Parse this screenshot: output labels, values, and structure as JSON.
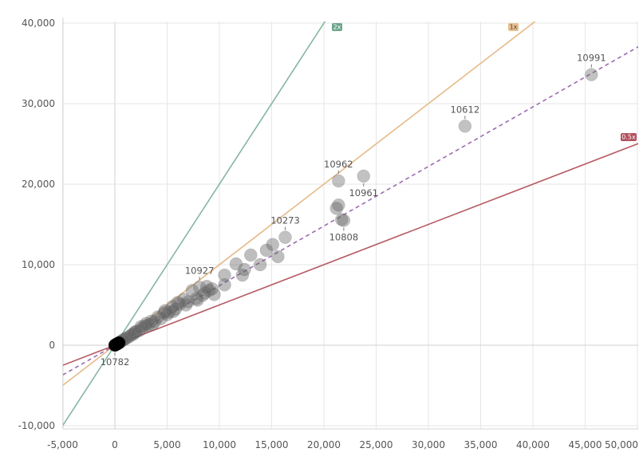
{
  "chart_data": {
    "type": "scatter",
    "title": "",
    "xlabel": "",
    "ylabel": "",
    "xlim": [
      -5000,
      50500
    ],
    "ylim": [
      -10000,
      40500
    ],
    "grid": true,
    "x_ticks": [
      {
        "value": -5000,
        "label": "-5,000"
      },
      {
        "value": 0,
        "label": "0"
      },
      {
        "value": 5000,
        "label": "5,000"
      },
      {
        "value": 10000,
        "label": "10,000"
      },
      {
        "value": 15000,
        "label": "15,000"
      },
      {
        "value": 20000,
        "label": "20,000"
      },
      {
        "value": 25000,
        "label": "25,000"
      },
      {
        "value": 30000,
        "label": "30,000"
      },
      {
        "value": 35000,
        "label": "35,000"
      },
      {
        "value": 40000,
        "label": "40,000"
      },
      {
        "value": 45000,
        "label": "45,000"
      },
      {
        "value": 50000,
        "label": "50,000"
      }
    ],
    "y_ticks": [
      {
        "value": -10000,
        "label": "-10,000"
      },
      {
        "value": 0,
        "label": "0"
      },
      {
        "value": 10000,
        "label": "10,000"
      },
      {
        "value": 20000,
        "label": "20,000"
      },
      {
        "value": 30000,
        "label": "30,000"
      },
      {
        "value": 40000,
        "label": "40,000"
      }
    ],
    "reference_lines": [
      {
        "label": "2x",
        "slope": 2,
        "color": "#86b6a0",
        "badge_color": "#6da58c"
      },
      {
        "label": "1x",
        "slope": 1,
        "color": "#e6b98a",
        "badge_color": "#e8bf90"
      },
      {
        "label": "0.5x",
        "slope": 0.5,
        "color": "#b65a62",
        "badge_color": "#b34f5c"
      }
    ],
    "trend_line": {
      "slope": 0.74,
      "intercept": 0,
      "color": "#9b6bb0",
      "dashed": true
    },
    "labeled_points": [
      {
        "id": "10991",
        "x": 45600,
        "y": 33600
      },
      {
        "id": "10612",
        "x": 33500,
        "y": 27200
      },
      {
        "id": "10962",
        "x": 21400,
        "y": 20400
      },
      {
        "id": "10961",
        "x": 23800,
        "y": 21000
      },
      {
        "id": "10273",
        "x": 16300,
        "y": 13400
      },
      {
        "id": "10808",
        "x": 21900,
        "y": 15500
      },
      {
        "id": "10927",
        "x": 8100,
        "y": 7200
      },
      {
        "id": "10782",
        "x": 0,
        "y": 0
      }
    ],
    "points": [
      [
        21200,
        17000
      ],
      [
        21400,
        17400
      ],
      [
        21700,
        15600
      ],
      [
        15600,
        11000
      ],
      [
        15100,
        12500
      ],
      [
        14500,
        11800
      ],
      [
        13000,
        11200
      ],
      [
        12400,
        9400
      ],
      [
        12200,
        8700
      ],
      [
        11600,
        10100
      ],
      [
        10500,
        8700
      ],
      [
        13900,
        10000
      ],
      [
        10500,
        7500
      ],
      [
        9500,
        6300
      ],
      [
        9000,
        6800
      ],
      [
        8800,
        7300
      ],
      [
        8400,
        6200
      ],
      [
        7800,
        5800
      ],
      [
        7400,
        6800
      ],
      [
        7000,
        5400
      ],
      [
        6600,
        5700
      ],
      [
        6200,
        5100
      ],
      [
        5800,
        4500
      ],
      [
        5500,
        4800
      ],
      [
        5200,
        4100
      ],
      [
        5000,
        3800
      ],
      [
        4700,
        4000
      ],
      [
        4400,
        3300
      ],
      [
        4100,
        3500
      ],
      [
        3800,
        2900
      ],
      [
        3500,
        3000
      ],
      [
        3200,
        2500
      ],
      [
        2900,
        2400
      ],
      [
        2600,
        2100
      ],
      [
        2300,
        1800
      ],
      [
        2000,
        1700
      ],
      [
        1800,
        1400
      ],
      [
        1600,
        1300
      ],
      [
        1400,
        1100
      ],
      [
        1200,
        950
      ],
      [
        1000,
        800
      ],
      [
        850,
        700
      ],
      [
        700,
        560
      ],
      [
        550,
        440
      ],
      [
        420,
        330
      ],
      [
        300,
        240
      ],
      [
        200,
        160
      ],
      [
        120,
        100
      ],
      [
        60,
        50
      ],
      [
        7900,
        5600
      ],
      [
        8600,
        6500
      ],
      [
        9300,
        7000
      ],
      [
        6800,
        5000
      ],
      [
        6000,
        5300
      ],
      [
        3000,
        2700
      ],
      [
        2500,
        2300
      ],
      [
        4800,
        4300
      ],
      [
        5600,
        4200
      ],
      [
        3600,
        2600
      ],
      [
        1900,
        1600
      ]
    ]
  }
}
